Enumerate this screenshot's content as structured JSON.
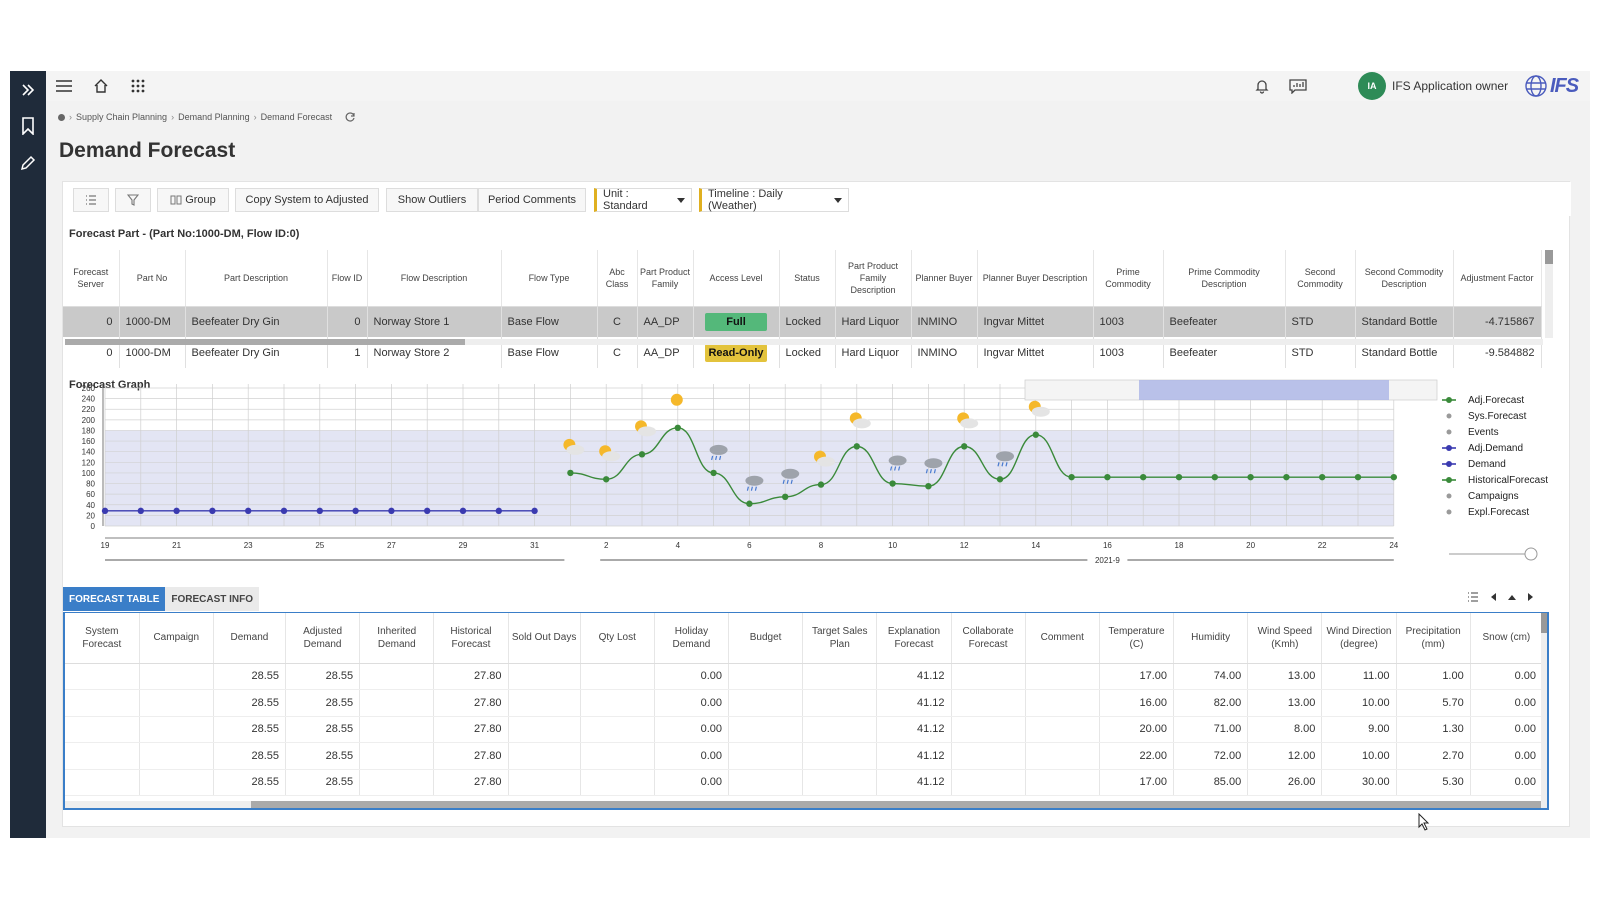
{
  "breadcrumb": [
    "Supply Chain Planning",
    "Demand Planning",
    "Demand Forecast"
  ],
  "page_title": "Demand Forecast",
  "user": {
    "initials": "IA",
    "name": "IFS Application owner"
  },
  "logo_text": "IFS",
  "toolbar": {
    "group_label": "Group",
    "copy_label": "Copy System to Adjusted",
    "outliers_label": "Show Outliers",
    "period_comments_label": "Period Comments",
    "unit_select": "Unit : Standard",
    "timeline_select": "Timeline : Daily (Weather)"
  },
  "forecast_part": {
    "header": "Forecast Part - (Part No:1000-DM, Flow ID:0)",
    "columns": [
      "Forecast Server",
      "Part No",
      "Part Description",
      "Flow ID",
      "Flow Description",
      "Flow Type",
      "Abc Class",
      "Part Product Family",
      "Access Level",
      "Status",
      "Part Product Family Description",
      "Planner Buyer",
      "Planner Buyer Description",
      "Prime Commodity",
      "Prime Commodity Description",
      "Second Commodity",
      "Second Commodity Description",
      "Adjustment Factor"
    ],
    "rows": [
      [
        "0",
        "1000-DM",
        "Beefeater Dry Gin",
        "0",
        "Norway Store 1",
        "Base Flow",
        "C",
        "AA_DP",
        "Full",
        "Locked",
        "Hard Liquor",
        "INMINO",
        "Ingvar Mittet",
        "1003",
        "Beefeater",
        "STD",
        "Standard Bottle",
        "-4.715867"
      ],
      [
        "0",
        "1000-DM",
        "Beefeater Dry Gin",
        "1",
        "Norway Store 2",
        "Base Flow",
        "C",
        "AA_DP",
        "Read-Only",
        "Locked",
        "Hard Liquor",
        "INMINO",
        "Ingvar Mittet",
        "1003",
        "Beefeater",
        "STD",
        "Standard Bottle",
        "-9.584882"
      ]
    ]
  },
  "graph": {
    "title": "Forecast Graph",
    "legend": [
      "Adj.Forecast",
      "Sys.Forecast",
      "Events",
      "Adj.Demand",
      "Demand",
      "HistoricalForecast",
      "Campaigns",
      "Expl.Forecast"
    ],
    "legend_colors": [
      "#3a8a3a",
      "#9a9a9a",
      "#9a9a9a",
      "#3a3ab0",
      "#3a3ab0",
      "#3a8a3a",
      "#9a9a9a",
      "#9a9a9a"
    ],
    "y_ticks": [
      "0",
      "20",
      "40",
      "60",
      "80",
      "100",
      "120",
      "140",
      "160",
      "180",
      "200",
      "220",
      "240",
      "260"
    ],
    "x_ticks": [
      "19",
      "21",
      "23",
      "25",
      "27",
      "29",
      "31",
      "2",
      "4",
      "6",
      "8",
      "10",
      "12",
      "14",
      "16",
      "18",
      "20",
      "22",
      "24"
    ],
    "month_label": "2021-9"
  },
  "chart_data": {
    "type": "line",
    "title": "Forecast Graph",
    "ylim": [
      0,
      260
    ],
    "x_dates": [
      "2021-08-19",
      "2021-08-20",
      "2021-08-21",
      "2021-08-22",
      "2021-08-23",
      "2021-08-24",
      "2021-08-25",
      "2021-08-26",
      "2021-08-27",
      "2021-08-28",
      "2021-08-29",
      "2021-08-30",
      "2021-08-31",
      "2021-09-01",
      "2021-09-02",
      "2021-09-03",
      "2021-09-04",
      "2021-09-05",
      "2021-09-06",
      "2021-09-07",
      "2021-09-08",
      "2021-09-09",
      "2021-09-10",
      "2021-09-11",
      "2021-09-12",
      "2021-09-13",
      "2021-09-14",
      "2021-09-15",
      "2021-09-16",
      "2021-09-17",
      "2021-09-18",
      "2021-09-19",
      "2021-09-20",
      "2021-09-21",
      "2021-09-22",
      "2021-09-23",
      "2021-09-24"
    ],
    "series": [
      {
        "name": "Adj.Demand",
        "color": "#3a3ab0",
        "values": [
          28.55,
          28.55,
          28.55,
          28.55,
          28.55,
          28.55,
          28.55,
          28.55,
          28.55,
          28.55,
          28.55,
          28.55,
          28.55,
          null,
          null,
          null,
          null,
          null,
          null,
          null,
          null,
          null,
          null,
          null,
          null,
          null,
          null,
          null,
          null,
          null,
          null,
          null,
          null,
          null,
          null,
          null,
          null
        ]
      },
      {
        "name": "Adj.Forecast",
        "color": "#3a8a3a",
        "values": [
          null,
          null,
          null,
          null,
          null,
          null,
          null,
          null,
          null,
          null,
          null,
          null,
          null,
          100,
          88,
          135,
          185,
          100,
          42,
          55,
          78,
          150,
          80,
          75,
          150,
          88,
          172,
          92,
          92,
          92,
          92,
          92,
          92,
          92,
          92,
          92,
          92
        ]
      }
    ],
    "weather_icons": [
      "partly-sunny",
      "partly-sunny",
      "partly-sunny",
      "sunny",
      "rain",
      "rain",
      "rain",
      "partly-sunny",
      "partly-sunny",
      "rain",
      "rain",
      "partly-sunny",
      "rain",
      "partly-sunny"
    ]
  },
  "tabs": {
    "forecast_table": "FORECAST TABLE",
    "forecast_info": "FORECAST INFO"
  },
  "forecast_table": {
    "columns": [
      "System Forecast",
      "Campaign",
      "Demand",
      "Adjusted Demand",
      "Inherited Demand",
      "Historical Forecast",
      "Sold Out Days",
      "Qty Lost",
      "Holiday Demand",
      "Budget",
      "Target Sales Plan",
      "Explanation Forecast",
      "Collaborate Forecast",
      "Comment",
      "Temperature (C)",
      "Humidity",
      "Wind Speed (Kmh)",
      "Wind Direction (degree)",
      "Precipitation (mm)",
      "Snow (cm)"
    ],
    "rows": [
      [
        "",
        "",
        "28.55",
        "28.55",
        "",
        "27.80",
        "",
        "",
        "0.00",
        "",
        "",
        "41.12",
        "",
        "",
        "17.00",
        "74.00",
        "13.00",
        "11.00",
        "1.00",
        "0.00"
      ],
      [
        "",
        "",
        "28.55",
        "28.55",
        "",
        "27.80",
        "",
        "",
        "0.00",
        "",
        "",
        "41.12",
        "",
        "",
        "16.00",
        "82.00",
        "13.00",
        "10.00",
        "5.70",
        "0.00"
      ],
      [
        "",
        "",
        "28.55",
        "28.55",
        "",
        "27.80",
        "",
        "",
        "0.00",
        "",
        "",
        "41.12",
        "",
        "",
        "20.00",
        "71.00",
        "8.00",
        "9.00",
        "1.30",
        "0.00"
      ],
      [
        "",
        "",
        "28.55",
        "28.55",
        "",
        "27.80",
        "",
        "",
        "0.00",
        "",
        "",
        "41.12",
        "",
        "",
        "22.00",
        "72.00",
        "12.00",
        "10.00",
        "2.70",
        "0.00"
      ],
      [
        "",
        "",
        "28.55",
        "28.55",
        "",
        "27.80",
        "",
        "",
        "0.00",
        "",
        "",
        "41.12",
        "",
        "",
        "17.00",
        "85.00",
        "26.00",
        "30.00",
        "5.30",
        "0.00"
      ]
    ]
  }
}
